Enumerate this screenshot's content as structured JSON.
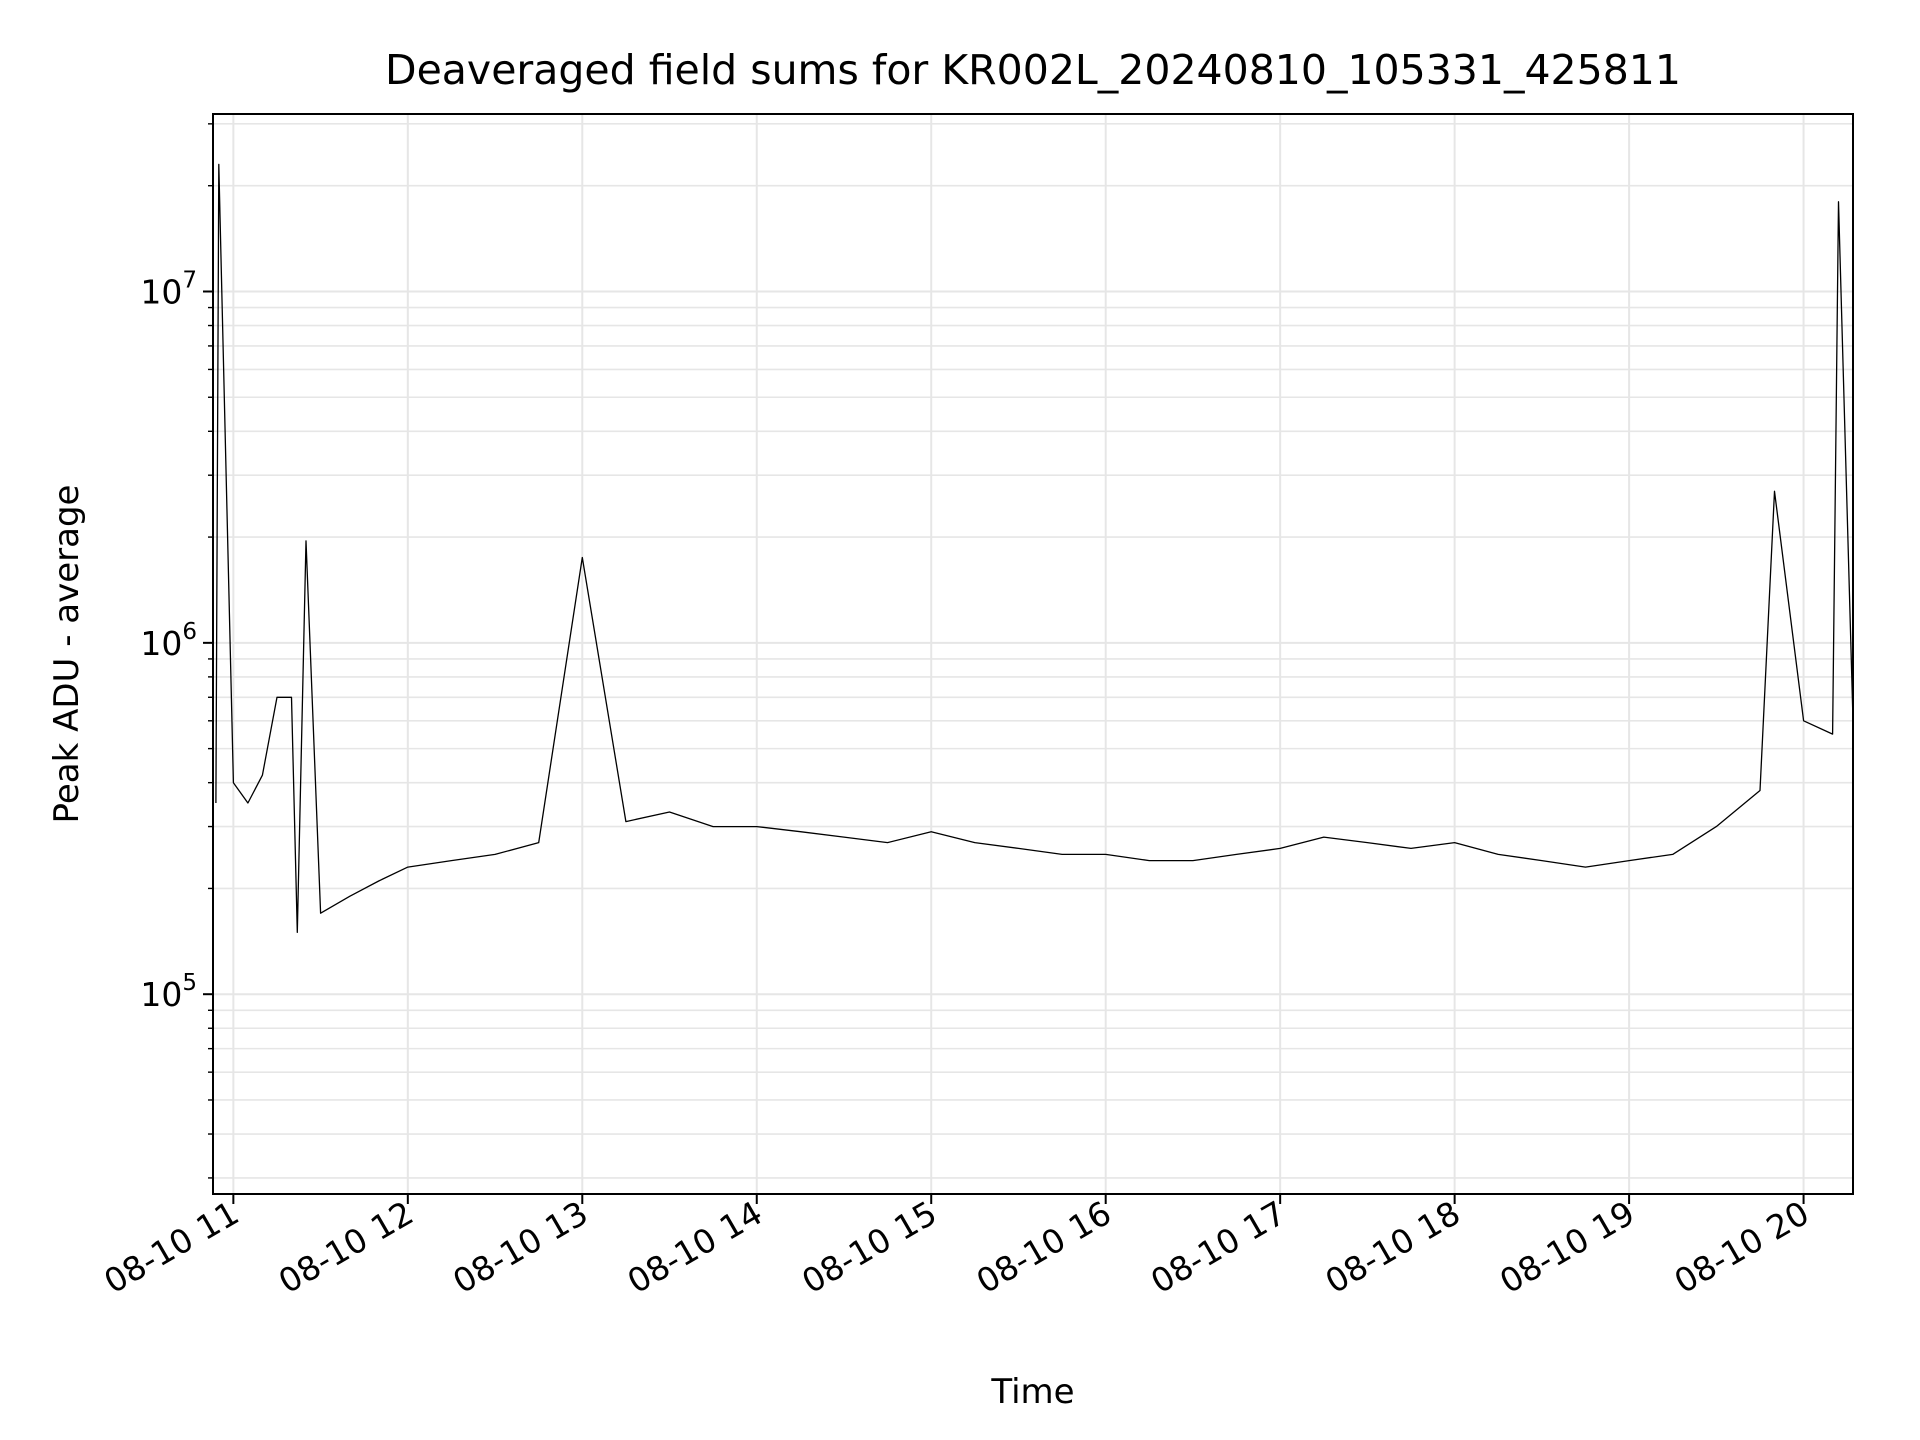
{
  "chart_data": {
    "type": "line",
    "title": "Deaveraged field sums for KR002L_20240810_105331_425811",
    "xlabel": "Time",
    "ylabel": "Peak ADU - average",
    "y_scale": "log",
    "ylim": [
      27000,
      32000000
    ],
    "xlim": [
      "2024-08-10 10:53",
      "2024-08-10 20:17"
    ],
    "x_ticks": [
      "08-10 11",
      "08-10 12",
      "08-10 13",
      "08-10 14",
      "08-10 15",
      "08-10 16",
      "08-10 17",
      "08-10 18",
      "08-10 19",
      "08-10 20"
    ],
    "y_ticks": [
      {
        "base": "10",
        "exp": "5",
        "value": 100000
      },
      {
        "base": "10",
        "exp": "6",
        "value": 1000000
      },
      {
        "base": "10",
        "exp": "7",
        "value": 10000000
      }
    ],
    "grid": true,
    "line_color": "#000000",
    "series": [
      {
        "x": [
          "2024-08-10 10:54",
          "2024-08-10 10:55",
          "2024-08-10 11:00",
          "2024-08-10 11:05",
          "2024-08-10 11:10",
          "2024-08-10 11:15",
          "2024-08-10 11:20",
          "2024-08-10 11:22",
          "2024-08-10 11:25",
          "2024-08-10 11:30",
          "2024-08-10 11:40",
          "2024-08-10 11:50",
          "2024-08-10 12:00",
          "2024-08-10 12:15",
          "2024-08-10 12:30",
          "2024-08-10 12:45",
          "2024-08-10 13:00",
          "2024-08-10 13:15",
          "2024-08-10 13:30",
          "2024-08-10 13:45",
          "2024-08-10 14:00",
          "2024-08-10 14:15",
          "2024-08-10 14:30",
          "2024-08-10 14:45",
          "2024-08-10 15:00",
          "2024-08-10 15:15",
          "2024-08-10 15:30",
          "2024-08-10 15:45",
          "2024-08-10 16:00",
          "2024-08-10 16:15",
          "2024-08-10 16:30",
          "2024-08-10 16:45",
          "2024-08-10 17:00",
          "2024-08-10 17:15",
          "2024-08-10 17:30",
          "2024-08-10 17:45",
          "2024-08-10 18:00",
          "2024-08-10 18:15",
          "2024-08-10 18:30",
          "2024-08-10 18:45",
          "2024-08-10 19:00",
          "2024-08-10 19:15",
          "2024-08-10 19:30",
          "2024-08-10 19:45",
          "2024-08-10 19:50",
          "2024-08-10 20:00",
          "2024-08-10 20:10",
          "2024-08-10 20:12",
          "2024-08-10 20:17"
        ],
        "y": [
          350000,
          23000000,
          400000,
          350000,
          420000,
          700000,
          700000,
          150000,
          1950000,
          170000,
          190000,
          210000,
          230000,
          240000,
          250000,
          270000,
          1750000,
          310000,
          330000,
          300000,
          300000,
          290000,
          280000,
          270000,
          290000,
          270000,
          260000,
          250000,
          250000,
          240000,
          240000,
          250000,
          260000,
          280000,
          270000,
          260000,
          270000,
          250000,
          240000,
          230000,
          240000,
          250000,
          300000,
          380000,
          2700000,
          600000,
          550000,
          18000000,
          600000
        ]
      }
    ]
  }
}
